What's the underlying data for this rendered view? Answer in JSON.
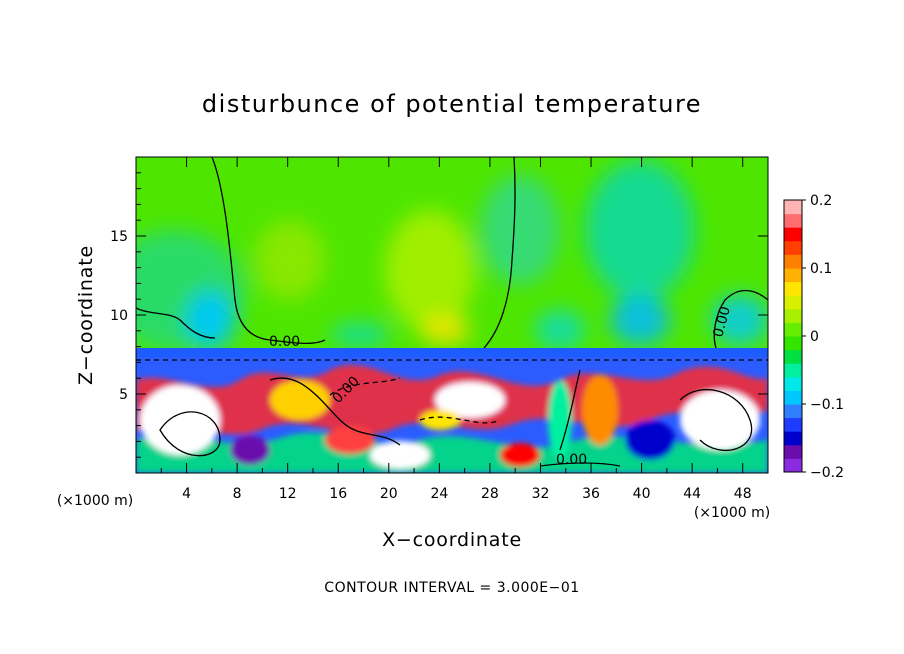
{
  "chart_data": {
    "type": "heatmap",
    "title": "disturbunce of potential temperature",
    "xlabel": "X−coordinate",
    "ylabel": "Z−coordinate",
    "x_unit_left": "(×1000 m)",
    "x_unit_right": "(×1000 m)",
    "xlim": [
      0,
      50
    ],
    "ylim": [
      0,
      20
    ],
    "x_ticks": [
      4,
      8,
      12,
      16,
      20,
      24,
      28,
      32,
      36,
      40,
      44,
      48
    ],
    "y_ticks": [
      5,
      10,
      15
    ],
    "colorbar": {
      "min": -0.2,
      "max": 0.2,
      "tick_values": [
        0.2,
        0.1,
        0,
        -0.1,
        -0.2
      ],
      "tick_labels": [
        "0.2",
        "0.1",
        "0",
        "−0.1",
        "−0.2"
      ],
      "colors": [
        "#8a2be2",
        "#6a0dad",
        "#0000cd",
        "#1e3cff",
        "#2f7fff",
        "#00c8ff",
        "#00e8e8",
        "#00f0a0",
        "#00e040",
        "#33e600",
        "#66ee00",
        "#a8f000",
        "#d8f000",
        "#ffe600",
        "#ffb000",
        "#ff8000",
        "#ff4000",
        "#ff0000",
        "#ff6e6e",
        "#ffb4b4"
      ]
    },
    "contour_labels": [
      "0.00",
      "0.00",
      "0.00",
      "0.00"
    ],
    "annotation": "CONTOUR INTERVAL = 3.000E−01",
    "tropopause_height": 7.2
  }
}
